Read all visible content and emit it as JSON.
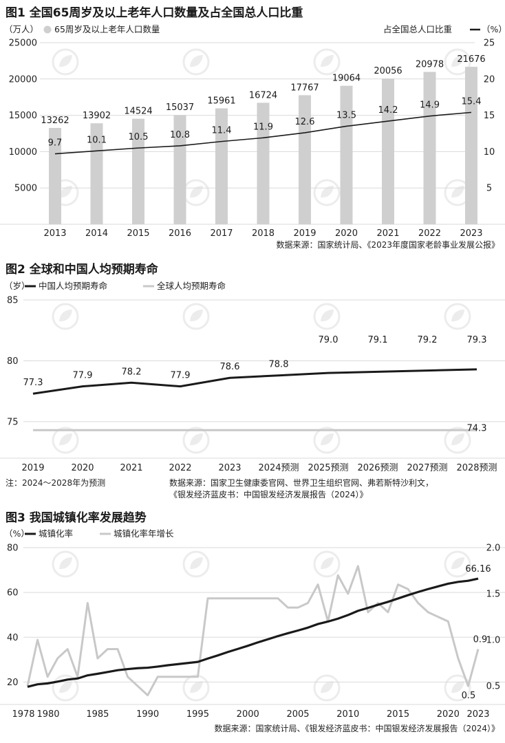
{
  "colors": {
    "bar": "#cfcfcf",
    "line_dark": "#1a1a1a",
    "line_light": "#c8c8c8",
    "grid": "#d9d9d9",
    "watermark": "#ececec"
  },
  "watermark_icon": "leaf-circle-logo-icon",
  "fig1": {
    "title": "图1 全国65周岁及以上老年人口数量及占全国总人口比重",
    "left_unit": "（万人）",
    "bar_legend": "65周岁及以上老年人口数量",
    "right_legend": "占全国总人口比重",
    "right_unit": "（%）",
    "source": "数据来源：国家统计局、《2023年度国家老龄事业发展公报》"
  },
  "fig2": {
    "title": "图2 全球和中国人均预期寿命",
    "unit": "（岁）",
    "legend_china": "中国人均预期寿命",
    "legend_global": "全球人均预期寿命",
    "note": "注：2024～2028年为预测",
    "source_line1": "数据来源：国家卫生健康委官网、世界卫生组织官网、弗若斯特沙利文，",
    "source_line2": "《银发经济蓝皮书：中国银发经济发展报告（2024）》"
  },
  "fig3": {
    "title": "图3 我国城镇化率发展趋势",
    "unit": "（%）",
    "legend_rate": "城镇化率",
    "legend_growth": "城镇化率年增长",
    "source": "数据来源：国家统计局、《银发经济蓝皮书：中国银发经济发展报告（2024）》"
  },
  "chart_data": [
    {
      "type": "bar",
      "title": "图1 全国65周岁及以上老年人口数量及占全国总人口比重",
      "categories": [
        "2013",
        "2014",
        "2015",
        "2016",
        "2017",
        "2018",
        "2019",
        "2020",
        "2021",
        "2022",
        "2023"
      ],
      "series": [
        {
          "name": "65周岁及以上老年人口数量",
          "kind": "bar",
          "axis": "left",
          "values": [
            13262,
            13902,
            14524,
            15037,
            15961,
            16724,
            17767,
            19064,
            20056,
            20978,
            21676
          ]
        },
        {
          "name": "占全国总人口比重",
          "kind": "line",
          "axis": "right",
          "values": [
            9.7,
            10.1,
            10.5,
            10.8,
            11.4,
            11.9,
            12.6,
            13.5,
            14.2,
            14.9,
            15.4
          ]
        }
      ],
      "ylim_left": [
        0,
        25000
      ],
      "yticks_left": [
        "5000",
        "10000",
        "15000",
        "20000",
        "25000"
      ],
      "ylim_right": [
        0,
        25
      ],
      "yticks_right": [
        "5",
        "10",
        "15",
        "20",
        "25"
      ],
      "grid": true
    },
    {
      "type": "line",
      "title": "图2 全球和中国人均预期寿命",
      "categories": [
        "2019",
        "2020",
        "2021",
        "2022",
        "2023",
        "2024预测",
        "2025预测",
        "2026预测",
        "2027预测",
        "2028预测"
      ],
      "series": [
        {
          "name": "中国人均预期寿命",
          "values": [
            77.3,
            77.9,
            78.2,
            77.9,
            78.6,
            78.8,
            79.0,
            79.1,
            79.2,
            79.3
          ]
        },
        {
          "name": "全球人均预期寿命",
          "values": [
            74.3,
            74.3,
            74.3,
            74.3,
            74.3,
            74.3,
            74.3,
            74.3,
            74.3,
            74.3
          ]
        }
      ],
      "point_labels_china": [
        "77.3",
        "77.9",
        "78.2",
        "77.9",
        "78.6",
        "78.8",
        "79.0",
        "79.1",
        "79.2",
        "79.3"
      ],
      "point_label_global": "74.3",
      "ylim": [
        72,
        85
      ],
      "yticks": [
        "75",
        "80",
        "85"
      ],
      "grid": true
    },
    {
      "type": "line",
      "title": "图3 我国城镇化率发展趋势",
      "x_ticks": [
        "1978",
        "1980",
        "1985",
        "1990",
        "1995",
        "2000",
        "2005",
        "2010",
        "2015",
        "2020",
        "2023"
      ],
      "series": [
        {
          "name": "城镇化率",
          "axis": "left",
          "x": [
            1978,
            1979,
            1980,
            1981,
            1982,
            1983,
            1984,
            1985,
            1986,
            1987,
            1988,
            1989,
            1990,
            1991,
            1992,
            1993,
            1994,
            1995,
            1996,
            1997,
            1998,
            1999,
            2000,
            2001,
            2002,
            2003,
            2004,
            2005,
            2006,
            2007,
            2008,
            2009,
            2010,
            2011,
            2012,
            2013,
            2014,
            2015,
            2016,
            2017,
            2018,
            2019,
            2020,
            2021,
            2022,
            2023
          ],
          "values": [
            17.9,
            19.0,
            19.4,
            20.2,
            21.1,
            21.6,
            23.0,
            23.7,
            24.5,
            25.3,
            25.8,
            26.2,
            26.4,
            26.9,
            27.5,
            28.0,
            28.5,
            29.0,
            30.5,
            31.9,
            33.4,
            34.8,
            36.2,
            37.7,
            39.1,
            40.5,
            41.8,
            43.0,
            44.3,
            45.9,
            47.0,
            48.3,
            49.9,
            51.8,
            53.1,
            54.5,
            55.8,
            57.3,
            58.8,
            60.2,
            61.5,
            62.7,
            63.9,
            64.7,
            65.2,
            66.16
          ]
        },
        {
          "name": "城镇化率年增长",
          "axis": "right",
          "x": [
            1978,
            1979,
            1980,
            1981,
            1982,
            1983,
            1984,
            1985,
            1986,
            1987,
            1988,
            1989,
            1990,
            1991,
            1992,
            1993,
            1994,
            1995,
            1996,
            1997,
            1998,
            1999,
            2000,
            2001,
            2002,
            2003,
            2004,
            2005,
            2006,
            2007,
            2008,
            2009,
            2010,
            2011,
            2012,
            2013,
            2014,
            2015,
            2016,
            2017,
            2018,
            2019,
            2020,
            2021,
            2022,
            2023
          ],
          "values": [
            0.5,
            1.0,
            0.6,
            0.8,
            0.9,
            0.6,
            1.4,
            0.8,
            0.9,
            0.9,
            0.6,
            0.5,
            0.4,
            0.6,
            0.6,
            0.6,
            0.6,
            0.6,
            1.45,
            1.45,
            1.45,
            1.45,
            1.45,
            1.45,
            1.45,
            1.45,
            1.35,
            1.35,
            1.4,
            1.6,
            1.2,
            1.7,
            1.5,
            1.8,
            1.3,
            1.4,
            1.3,
            1.6,
            1.55,
            1.4,
            1.3,
            1.25,
            1.2,
            0.8,
            0.5,
            0.9
          ]
        }
      ],
      "label_rate_end": "66.16",
      "label_growth_low": "0.5",
      "label_growth_end": "0.9",
      "yticks_left": [
        "20",
        "40",
        "60",
        "80"
      ],
      "ylim_left": [
        10,
        80
      ],
      "yticks_right": [
        "0.5",
        "1.0",
        "1.5",
        "2.0"
      ],
      "ylim_right": [
        0.3,
        2.0
      ],
      "grid": true
    }
  ]
}
